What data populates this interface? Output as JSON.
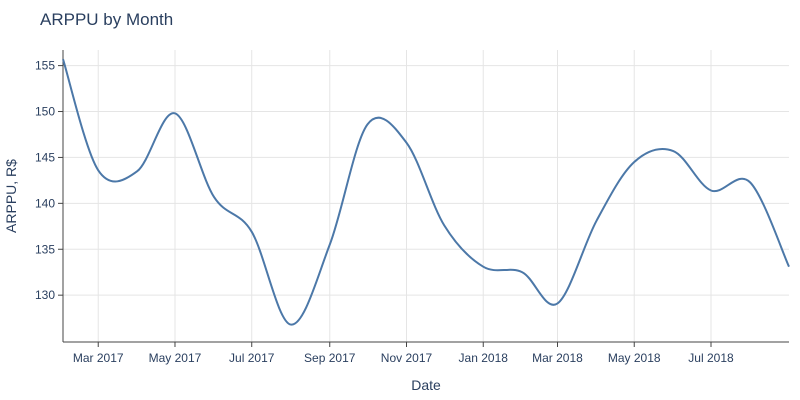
{
  "chart_data": {
    "type": "line",
    "title": "ARPPU by Month",
    "xlabel": "Date",
    "ylabel": "ARPPU, R$",
    "x_tick_labels": [
      "Mar 2017",
      "May 2017",
      "Jul 2017",
      "Sep 2017",
      "Nov 2017",
      "Jan 2018",
      "Mar 2018",
      "May 2018",
      "Jul 2018"
    ],
    "x_tick_dates": [
      "2017-03-01",
      "2017-05-01",
      "2017-07-01",
      "2017-09-01",
      "2017-11-01",
      "2018-01-01",
      "2018-03-01",
      "2018-05-01",
      "2018-07-01"
    ],
    "xlim": [
      "2017-02-01",
      "2018-09-01"
    ],
    "yticks": [
      130,
      135,
      140,
      145,
      150,
      155
    ],
    "ylim": [
      124.9,
      156.7
    ],
    "grid": true,
    "line_color": "#4c78a8",
    "series": [
      {
        "x": [
          "2017-02-01",
          "2017-03-01",
          "2017-04-01",
          "2017-05-01",
          "2017-06-01",
          "2017-07-01",
          "2017-08-01",
          "2017-09-01",
          "2017-10-01",
          "2017-11-01",
          "2017-12-01",
          "2018-01-01",
          "2018-02-01",
          "2018-03-01",
          "2018-04-01",
          "2018-05-01",
          "2018-06-01",
          "2018-07-01",
          "2018-08-01",
          "2018-09-01"
        ],
        "values": [
          155.7,
          143.6,
          143.5,
          149.8,
          140.7,
          136.9,
          126.8,
          135.5,
          148.6,
          146.6,
          137.6,
          133.1,
          132.5,
          129.1,
          138.1,
          144.5,
          145.7,
          141.4,
          142.3,
          133.1
        ]
      }
    ]
  }
}
